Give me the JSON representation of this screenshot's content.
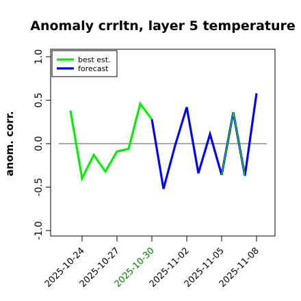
{
  "chart_data": {
    "type": "line",
    "title": "Anomaly crrltn, layer 5 temperature",
    "xlabel": "",
    "ylabel": "anom. corr.",
    "ylim": [
      -1.0,
      1.0
    ],
    "yticks": [
      "-1.0",
      "-0.5",
      "0.0",
      "0.5",
      "1.0"
    ],
    "ytick_values": [
      -1.0,
      -0.5,
      0.0,
      0.5,
      1.0
    ],
    "xticks": [
      "2025-10-24",
      "2025-10-27",
      "2025-10-30",
      "2025-11-02",
      "2025-11-05",
      "2025-11-08"
    ],
    "xtick_days": [
      3,
      6,
      9,
      12,
      15,
      18
    ],
    "xtick_colors": [
      "#000000",
      "#000000",
      "#008000",
      "#000000",
      "#000000",
      "#000000"
    ],
    "reference_line": 0.0,
    "grid": false,
    "legend_position": "top-left",
    "series": [
      {
        "name": "best est.",
        "color": "#00ee00",
        "x_days": [
          2,
          3,
          4,
          5,
          6,
          7,
          8,
          9
        ],
        "values": [
          0.38,
          -0.4,
          -0.13,
          -0.32,
          -0.09,
          -0.06,
          0.46,
          0.28
        ]
      },
      {
        "name": "forecast",
        "color": "#0000ff",
        "x_days": [
          9,
          10,
          11,
          12,
          13,
          14,
          15,
          16,
          17,
          18
        ],
        "values": [
          0.28,
          -0.52,
          -0.02,
          0.42,
          -0.34,
          0.11,
          -0.36,
          0.36,
          -0.37,
          0.58
        ]
      }
    ],
    "green_overlay_segments": [
      [
        15,
        16
      ],
      [
        16,
        17
      ]
    ]
  }
}
